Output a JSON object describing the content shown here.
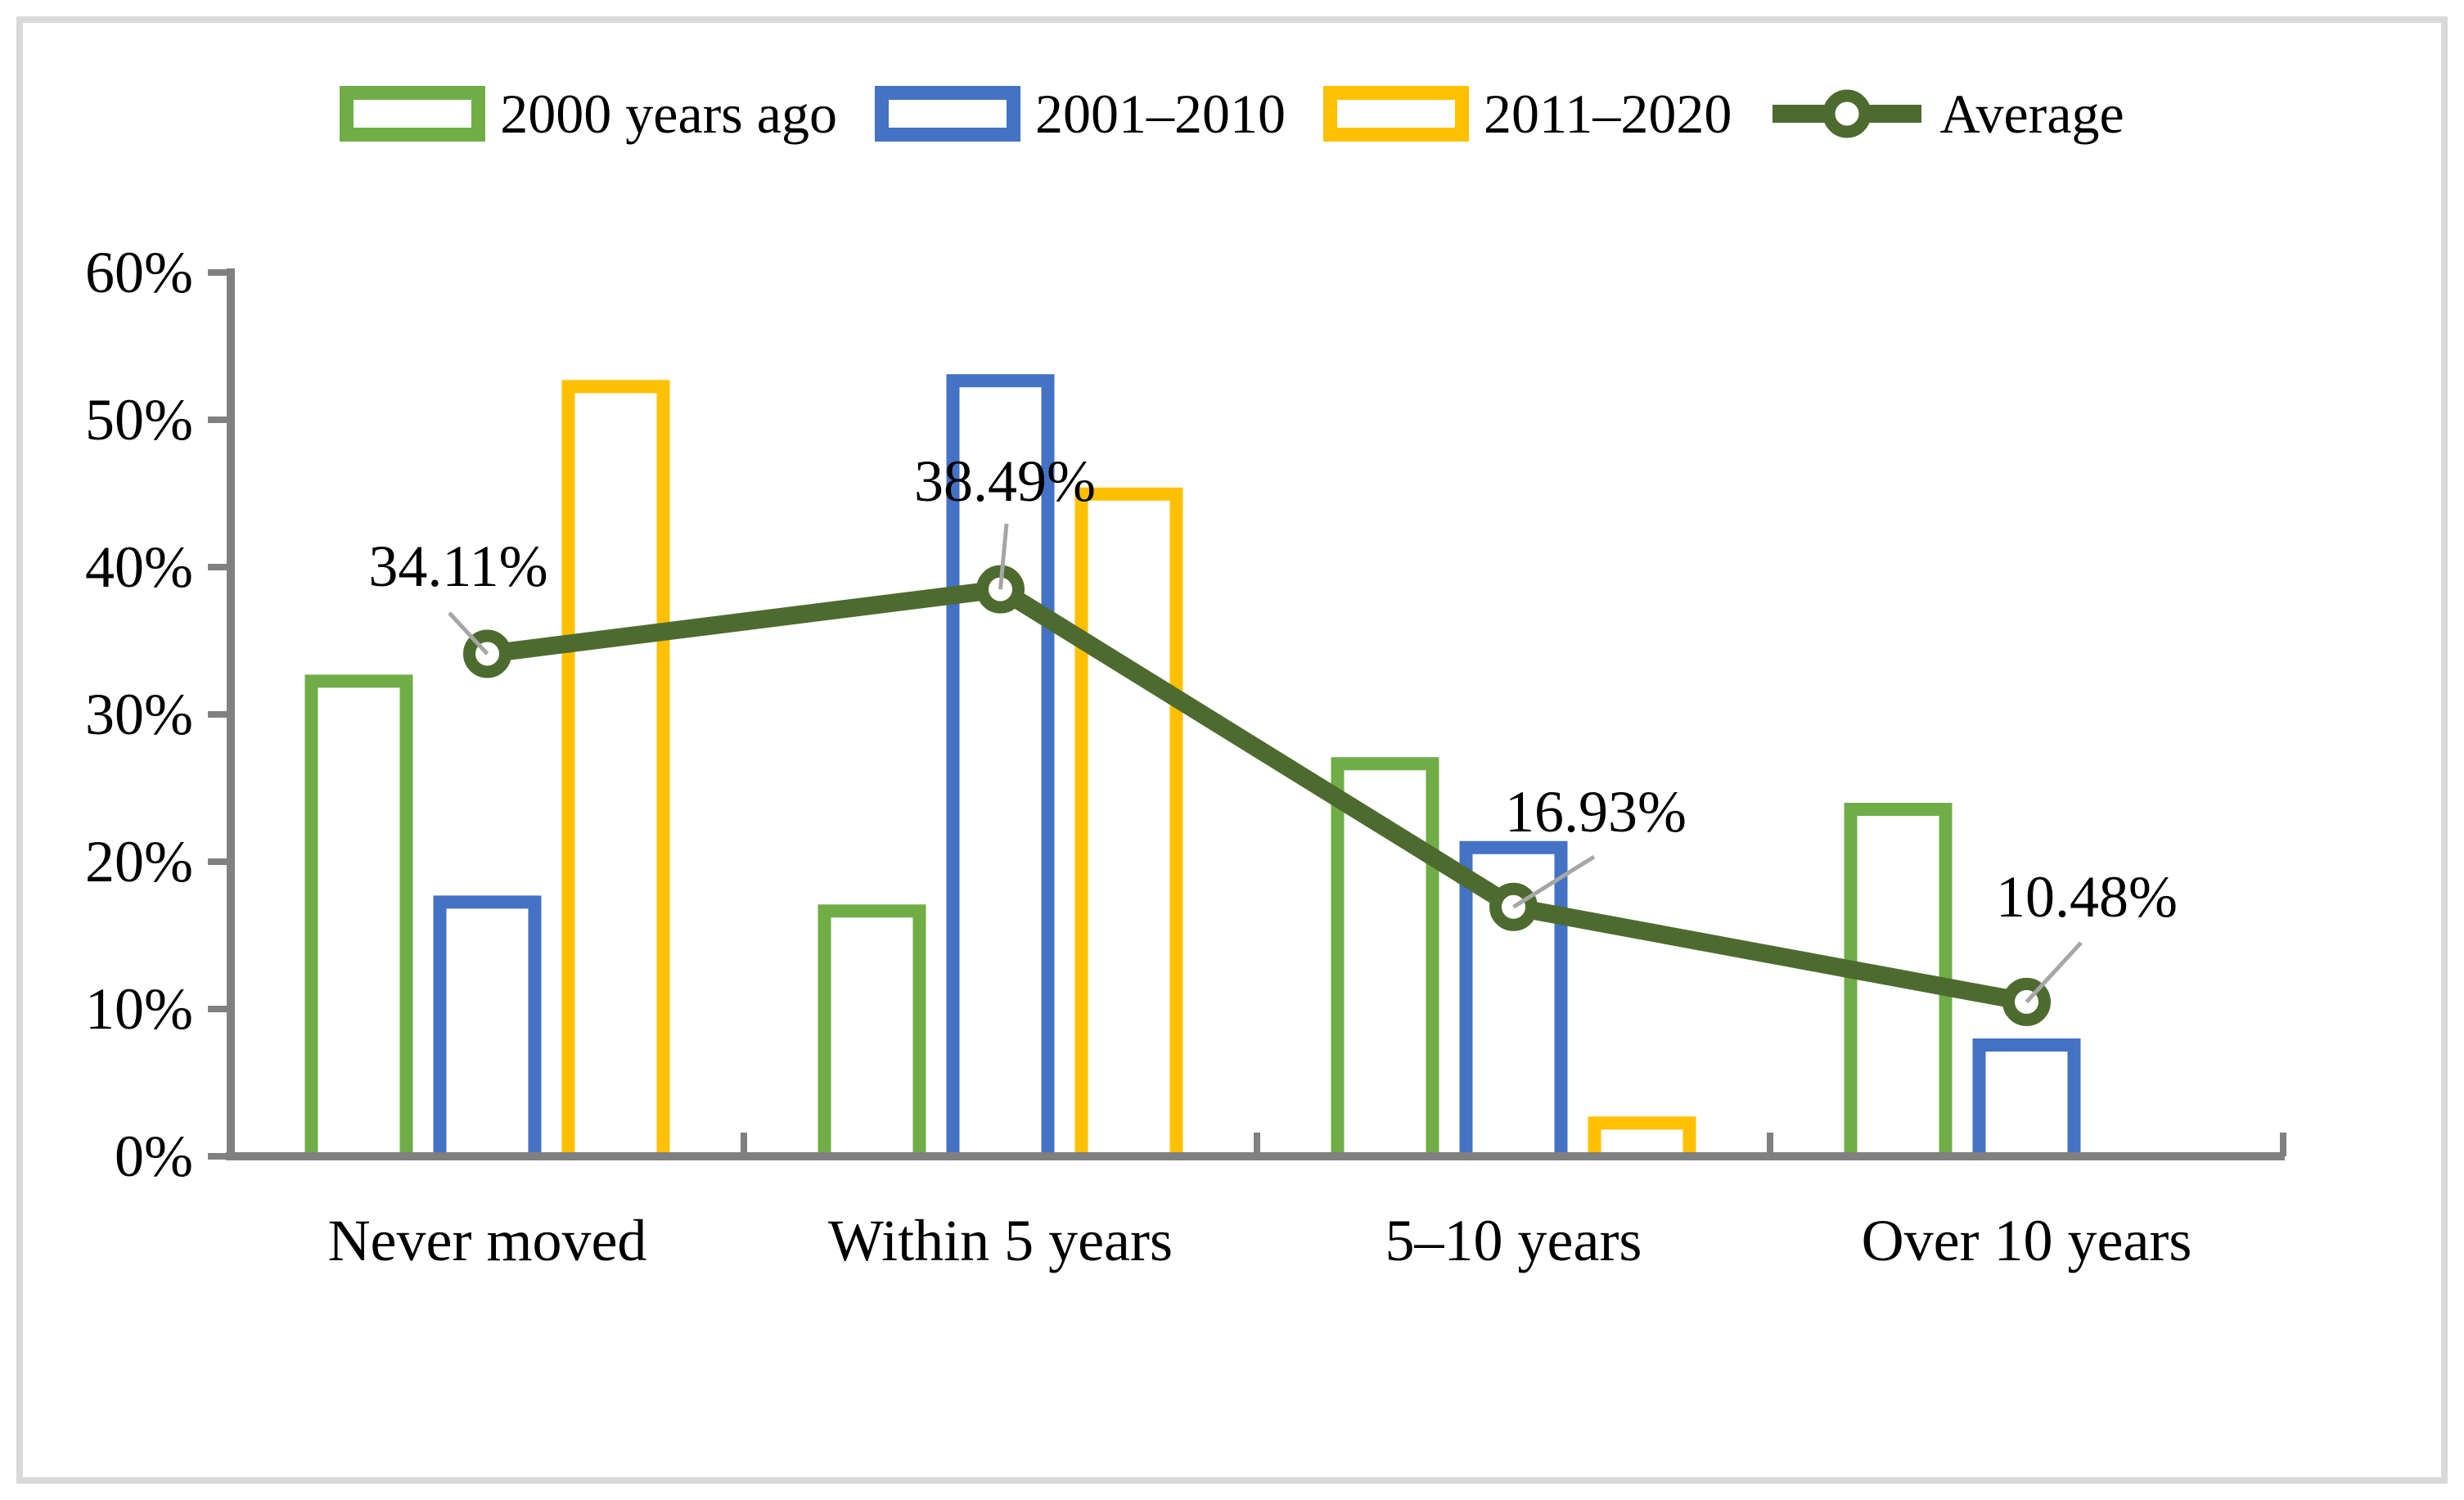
{
  "page": {
    "background": "#ffffff",
    "frame_border_color": "#d9d9d9"
  },
  "legend": {
    "items": [
      {
        "label": "2000 years ago",
        "swatch": "box",
        "color": "#70ad47"
      },
      {
        "label": "2001–2010",
        "swatch": "box",
        "color": "#4472c4"
      },
      {
        "label": "2011–2020",
        "swatch": "box",
        "color": "#ffc000"
      },
      {
        "label": "Average",
        "swatch": "line-marker",
        "color": "#4d6b2f"
      }
    ]
  },
  "chart_data": {
    "type": "bar",
    "title": "",
    "categories": [
      "Never moved",
      "Within 5 years",
      "5–10 years",
      "Over 10 years"
    ],
    "series": [
      {
        "name": "2000 years ago",
        "type": "bar",
        "color": "#70ad47",
        "values": [
          32.7,
          17.1,
          27.1,
          24.0
        ]
      },
      {
        "name": "2001–2010",
        "type": "bar",
        "color": "#4472c4",
        "values": [
          17.7,
          53.1,
          21.4,
          8.0
        ]
      },
      {
        "name": "2011–2020",
        "type": "bar",
        "color": "#ffc000",
        "values": [
          52.7,
          45.4,
          2.7,
          0
        ]
      },
      {
        "name": "Average",
        "type": "line",
        "color": "#4d6b2f",
        "marker": "circle",
        "values": [
          34.11,
          38.49,
          16.93,
          10.48
        ],
        "data_labels": [
          "34.11%",
          "38.49%",
          "16.93%",
          "10.48%"
        ]
      }
    ],
    "ylim": [
      0,
      60
    ],
    "ytick_step": 10,
    "ytick_labels": [
      "0%",
      "10%",
      "20%",
      "30%",
      "40%",
      "50%",
      "60%"
    ],
    "grid": false,
    "legend_position": "top",
    "axis_color": "#808080",
    "leader_line_color": "#a6a6a6",
    "bar_fill": "#ffffff"
  }
}
